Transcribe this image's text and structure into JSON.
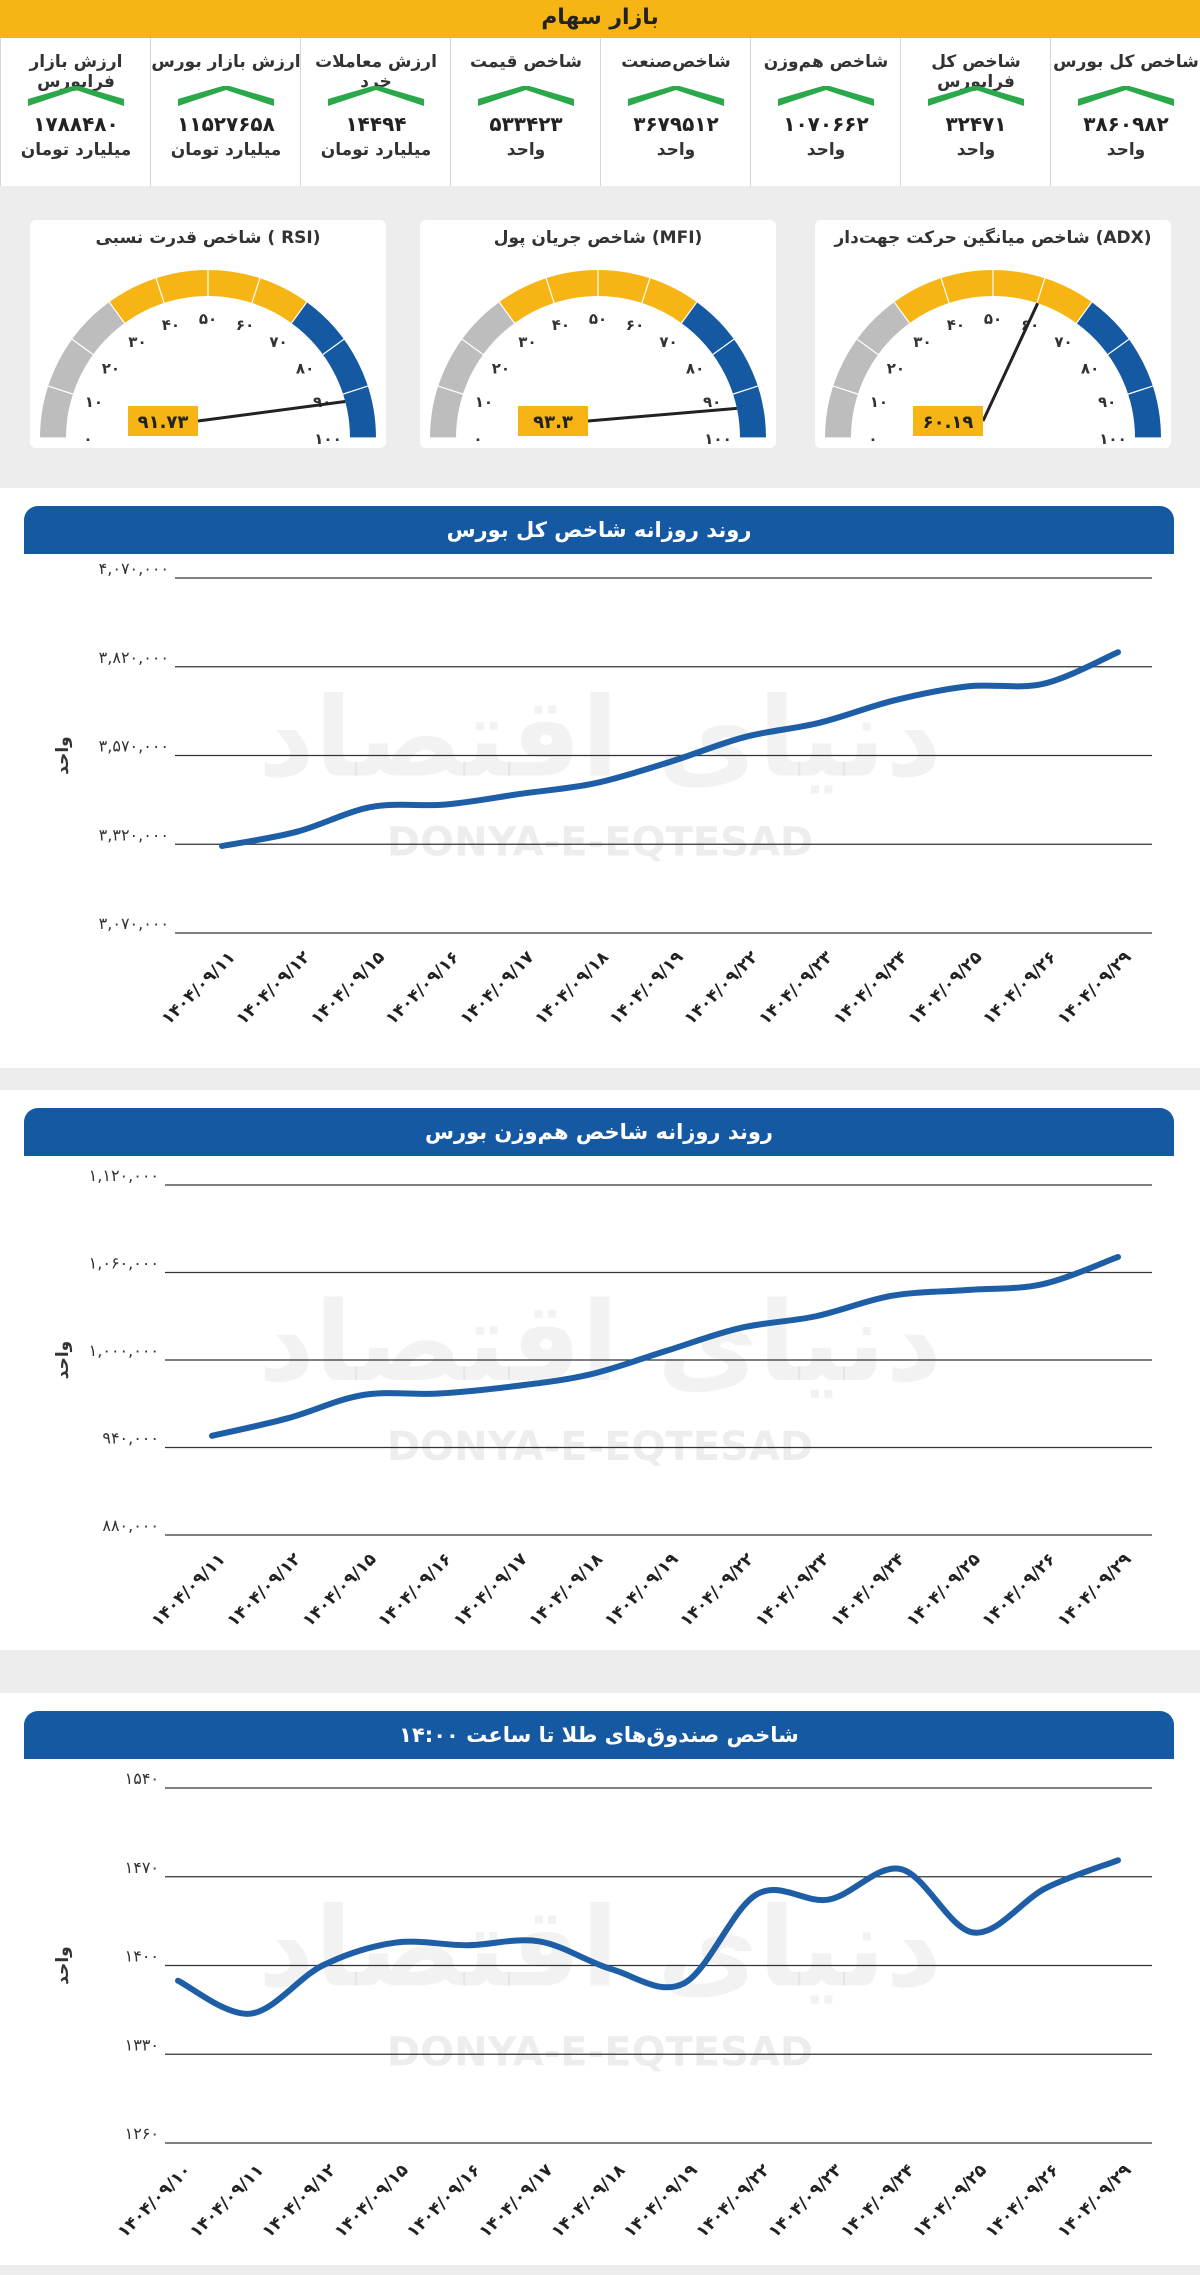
{
  "header": {
    "title": "بازار سهام"
  },
  "indices": [
    {
      "label": "شاخص کل بورس",
      "value": "۳۸۶۰۹۸۲",
      "unit": "واحد",
      "trend": "up"
    },
    {
      "label": "شاخص کل فرابورس",
      "value": "۳۲۴۷۱",
      "unit": "واحد",
      "trend": "up"
    },
    {
      "label": "شاخص هم‌وزن",
      "value": "۱۰۷۰۶۶۲",
      "unit": "واحد",
      "trend": "up"
    },
    {
      "label": "شاخص‌صنعت",
      "value": "۳۶۷۹۵۱۲",
      "unit": "واحد",
      "trend": "up"
    },
    {
      "label": "شاخص قیمت",
      "value": "۵۳۳۴۲۳",
      "unit": "واحد",
      "trend": "up"
    },
    {
      "label": "ارزش معاملات خرد",
      "value": "۱۴۴۹۴",
      "unit": "میلیارد تومان",
      "trend": "up"
    },
    {
      "label": "ارزش بازار بورس",
      "value": "۱۱۵۲۷۶۵۸",
      "unit": "میلیارد تومان",
      "trend": "up"
    },
    {
      "label": "ارزش بازار فرابورس",
      "value": "۱۷۸۸۴۸۰",
      "unit": "میلیارد تومان",
      "trend": "up"
    }
  ],
  "colors": {
    "accent": "#f7b415",
    "blue": "#1559a3",
    "green": "#2ba84a",
    "grey": "#bdbdbd",
    "line": "#1d5ea6"
  },
  "gauges": [
    {
      "title": "شاخص قدرت نسبی ( RSI)",
      "value": 91.73,
      "value_label": "۹۱.۷۳",
      "ticks": [
        "۰",
        "۱۰",
        "۲۰",
        "۳۰",
        "۴۰",
        "۵۰",
        "۶۰",
        "۷۰",
        "۸۰",
        "۹۰",
        "۱۰۰"
      ]
    },
    {
      "title": "شاخص جریان پول (MFI)",
      "value": 93.3,
      "value_label": "۹۳.۳",
      "ticks": [
        "۰",
        "۱۰",
        "۲۰",
        "۳۰",
        "۴۰",
        "۵۰",
        "۶۰",
        "۷۰",
        "۸۰",
        "۹۰",
        "۱۰۰"
      ]
    },
    {
      "title": "شاخص میانگین حرکت جهت‌دار (ADX)",
      "value": 60.19,
      "value_label": "۶۰.۱۹",
      "ticks": [
        "۰",
        "۱۰",
        "۲۰",
        "۳۰",
        "۴۰",
        "۵۰",
        "۶۰",
        "۷۰",
        "۸۰",
        "۹۰",
        "۱۰۰"
      ]
    }
  ],
  "watermark": {
    "brand": "دنیای اقتصاد",
    "latin": "DONYA-E-EQTESAD"
  },
  "chart_data": [
    {
      "type": "line",
      "title": "روند روزانه شاخص کل بورس",
      "ylabel": "واحد",
      "ylim": [
        3070000,
        4070000
      ],
      "yticks": [
        "۳,۰۷۰,۰۰۰",
        "۳,۳۲۰,۰۰۰",
        "۳,۵۷۰,۰۰۰",
        "۳,۸۲۰,۰۰۰",
        "۴,۰۷۰,۰۰۰"
      ],
      "categories": [
        "۱۴۰۴/۰۹/۱۱",
        "۱۴۰۴/۰۹/۱۲",
        "۱۴۰۴/۰۹/۱۵",
        "۱۴۰۴/۰۹/۱۶",
        "۱۴۰۴/۰۹/۱۷",
        "۱۴۰۴/۰۹/۱۸",
        "۱۴۰۴/۰۹/۱۹",
        "۱۴۰۴/۰۹/۲۲",
        "۱۴۰۴/۰۹/۲۳",
        "۱۴۰۴/۰۹/۲۴",
        "۱۴۰۴/۰۹/۲۵",
        "۱۴۰۴/۰۹/۲۶",
        "۱۴۰۴/۰۹/۲۹"
      ],
      "values": [
        3315000,
        3355000,
        3425000,
        3432000,
        3462000,
        3492000,
        3552000,
        3622000,
        3662000,
        3725000,
        3765000,
        3772000,
        3860982
      ]
    },
    {
      "type": "line",
      "title": "روند روزانه شاخص هم‌وزن بورس",
      "ylabel": "واحد",
      "ylim": [
        880000,
        1120000
      ],
      "yticks": [
        "۸۸۰,۰۰۰",
        "۹۴۰,۰۰۰",
        "۱,۰۰۰,۰۰۰",
        "۱,۰۶۰,۰۰۰",
        "۱,۱۲۰,۰۰۰"
      ],
      "categories": [
        "۱۴۰۴/۰۹/۱۱",
        "۱۴۰۴/۰۹/۱۲",
        "۱۴۰۴/۰۹/۱۵",
        "۱۴۰۴/۰۹/۱۶",
        "۱۴۰۴/۰۹/۱۷",
        "۱۴۰۴/۰۹/۱۸",
        "۱۴۰۴/۰۹/۱۹",
        "۱۴۰۴/۰۹/۲۲",
        "۱۴۰۴/۰۹/۲۳",
        "۱۴۰۴/۰۹/۲۴",
        "۱۴۰۴/۰۹/۲۵",
        "۱۴۰۴/۰۹/۲۶",
        "۱۴۰۴/۰۹/۲۹"
      ],
      "values": [
        948000,
        960000,
        976000,
        977000,
        982000,
        990000,
        1006000,
        1022000,
        1030000,
        1044000,
        1048000,
        1052000,
        1070662
      ]
    },
    {
      "type": "line",
      "title": "شاخص صندوق‌های طلا تا ساعت ۱۴:۰۰",
      "ylabel": "واحد",
      "ylim": [
        1260,
        1540
      ],
      "yticks": [
        "۱۲۶۰",
        "۱۳۳۰",
        "۱۴۰۰",
        "۱۴۷۰",
        "۱۵۴۰"
      ],
      "categories": [
        "۱۴۰۴/۰۹/۱۰",
        "۱۴۰۴/۰۹/۱۱",
        "۱۴۰۴/۰۹/۱۲",
        "۱۴۰۴/۰۹/۱۵",
        "۱۴۰۴/۰۹/۱۶",
        "۱۴۰۴/۰۹/۱۷",
        "۱۴۰۴/۰۹/۱۸",
        "۱۴۰۴/۰۹/۱۹",
        "۱۴۰۴/۰۹/۲۲",
        "۱۴۰۴/۰۹/۲۳",
        "۱۴۰۴/۰۹/۲۴",
        "۱۴۰۴/۰۹/۲۵",
        "۱۴۰۴/۰۹/۲۶",
        "۱۴۰۴/۰۹/۲۹"
      ],
      "values": [
        1388,
        1362,
        1400,
        1418,
        1416,
        1419,
        1397,
        1386,
        1456,
        1452,
        1476,
        1426,
        1461,
        1483
      ]
    }
  ]
}
